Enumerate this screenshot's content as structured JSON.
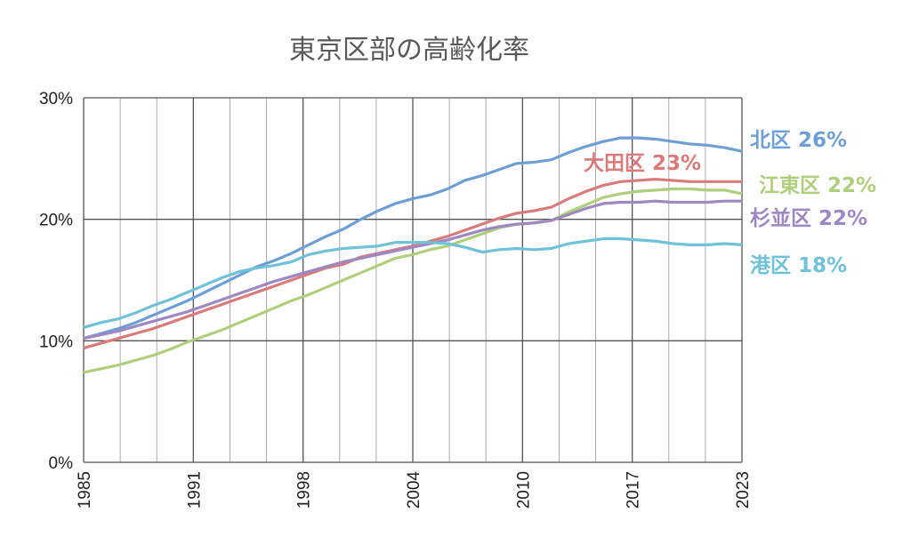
{
  "chart_data": {
    "type": "line",
    "title": "東京区部の高齢化率",
    "xlabel": "",
    "ylabel": "",
    "x": [
      1985,
      1986,
      1987,
      1988,
      1989,
      1990,
      1991,
      1992,
      1993,
      1994,
      1995,
      1996,
      1997,
      1998,
      1999,
      2000,
      2001,
      2002,
      2003,
      2004,
      2005,
      2006,
      2007,
      2008,
      2009,
      2010,
      2011,
      2012,
      2013,
      2014,
      2015,
      2016,
      2017,
      2018,
      2019,
      2020,
      2021,
      2022,
      2023
    ],
    "x_tick_labels": [
      "1985",
      "1991",
      "1998",
      "2004",
      "2010",
      "2017",
      "2023"
    ],
    "y_tick_labels": [
      "0%",
      "10%",
      "20%",
      "30%"
    ],
    "ylim": [
      0,
      30
    ],
    "grid": true,
    "legend": "end-of-line labels",
    "series": [
      {
        "name": "北区",
        "label": "北区 26%",
        "color": "#6e9fd4",
        "values": [
          10.2,
          10.6,
          11.0,
          11.5,
          12.1,
          12.7,
          13.3,
          14.0,
          14.7,
          15.4,
          16.1,
          16.6,
          17.2,
          17.9,
          18.6,
          19.2,
          20.0,
          20.7,
          21.3,
          21.7,
          22.0,
          22.5,
          23.2,
          23.6,
          24.1,
          24.6,
          24.7,
          24.9,
          25.5,
          26.0,
          26.4,
          26.7,
          26.7,
          26.6,
          26.4,
          26.2,
          26.1,
          25.9,
          25.6
        ]
      },
      {
        "name": "大田区",
        "label": "大田区 23%",
        "color": "#d97b7b",
        "values": [
          9.4,
          9.8,
          10.2,
          10.6,
          11.0,
          11.5,
          12.0,
          12.5,
          13.0,
          13.5,
          14.0,
          14.5,
          15.0,
          15.5,
          16.0,
          16.3,
          16.9,
          17.2,
          17.5,
          17.8,
          18.2,
          18.6,
          19.1,
          19.6,
          20.1,
          20.5,
          20.7,
          21.0,
          21.7,
          22.3,
          22.8,
          23.1,
          23.2,
          23.3,
          23.2,
          23.1,
          23.1,
          23.1,
          23.1
        ]
      },
      {
        "name": "江東区",
        "label": "江東区 22%",
        "color": "#b0cf7c",
        "values": [
          7.4,
          7.7,
          8.0,
          8.4,
          8.8,
          9.3,
          9.9,
          10.4,
          10.9,
          11.5,
          12.1,
          12.7,
          13.3,
          13.8,
          14.4,
          15.0,
          15.6,
          16.2,
          16.8,
          17.1,
          17.5,
          17.8,
          18.3,
          18.8,
          19.3,
          19.6,
          19.7,
          19.9,
          20.6,
          21.2,
          21.8,
          22.1,
          22.3,
          22.4,
          22.5,
          22.5,
          22.4,
          22.4,
          22.1
        ]
      },
      {
        "name": "杉並区",
        "label": "杉並区 22%",
        "color": "#9d88c2",
        "values": [
          10.2,
          10.5,
          10.8,
          11.2,
          11.6,
          12.0,
          12.4,
          12.9,
          13.4,
          13.9,
          14.4,
          14.9,
          15.3,
          15.7,
          16.1,
          16.5,
          16.8,
          17.1,
          17.4,
          17.7,
          18.0,
          18.3,
          18.7,
          19.1,
          19.4,
          19.6,
          19.7,
          19.9,
          20.4,
          20.9,
          21.3,
          21.4,
          21.4,
          21.5,
          21.4,
          21.4,
          21.4,
          21.5,
          21.5
        ]
      },
      {
        "name": "港区",
        "label": "港区 18%",
        "color": "#6fc2d8",
        "values": [
          11.1,
          11.5,
          11.8,
          12.3,
          12.9,
          13.4,
          14.0,
          14.6,
          15.2,
          15.7,
          16.0,
          16.2,
          16.5,
          17.1,
          17.4,
          17.6,
          17.7,
          17.8,
          18.1,
          18.1,
          18.1,
          18.0,
          17.7,
          17.3,
          17.5,
          17.6,
          17.5,
          17.6,
          18.0,
          18.2,
          18.4,
          18.4,
          18.3,
          18.2,
          18.0,
          17.9,
          17.9,
          18.0,
          17.9
        ]
      }
    ]
  }
}
